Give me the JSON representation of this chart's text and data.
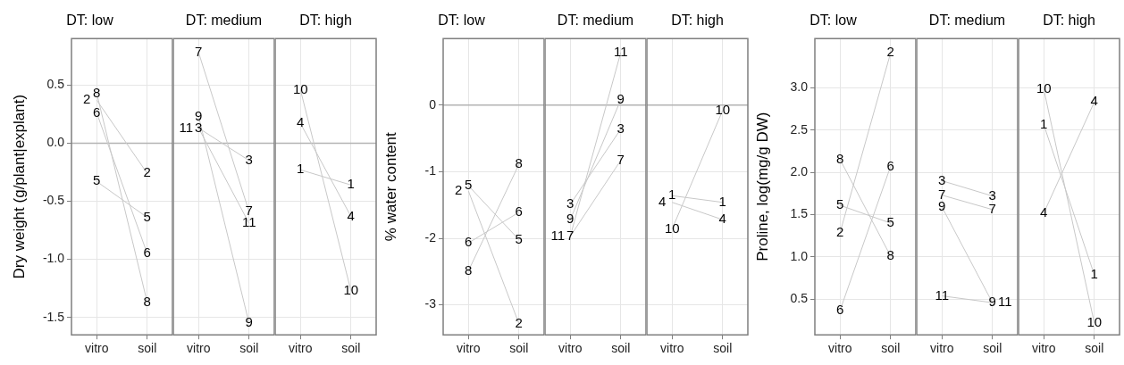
{
  "chart_data": [
    {
      "type": "line",
      "title": "DT: low",
      "ylabel": "Dry weight (g/plant|explant)",
      "categories": [
        "vitro",
        "soil"
      ],
      "ylim": [
        -1.65,
        0.9
      ],
      "yticks": [
        {
          "value": -1.5,
          "label": "-1.5"
        },
        {
          "value": -1,
          "label": "-1.0"
        },
        {
          "value": -0.5,
          "label": "-0.5"
        },
        {
          "value": 0,
          "label": "0.0"
        },
        {
          "value": 0.5,
          "label": "0.5"
        }
      ],
      "grid": true,
      "marker": "none",
      "ref_lines": [
        {
          "axis": "y",
          "value": 0,
          "color": "#b3b3b3"
        }
      ],
      "series": [
        {
          "name": "8",
          "color": "#c8c8c8",
          "values": [
            0.43,
            -1.37
          ]
        },
        {
          "name": "2",
          "color": "#c8c8c8",
          "values": [
            0.37,
            -0.26
          ]
        },
        {
          "name": "6",
          "color": "#c8c8c8",
          "values": [
            0.26,
            -0.95
          ]
        },
        {
          "name": "5",
          "color": "#c8c8c8",
          "values": [
            -0.33,
            -0.64
          ]
        }
      ]
    },
    {
      "type": "line",
      "title": "DT: medium",
      "categories": [
        "vitro",
        "soil"
      ],
      "ylim": [
        -1.65,
        0.9
      ],
      "yticks": [
        -1.5,
        -1,
        -0.5,
        0,
        0.5
      ],
      "grid": true,
      "marker": "none",
      "tick_labels": "x",
      "ref_lines": [
        {
          "axis": "y",
          "value": 0,
          "color": "#b3b3b3"
        }
      ],
      "series": [
        {
          "name": "7",
          "color": "#c8c8c8",
          "values": [
            0.78,
            -0.59
          ]
        },
        {
          "name": "9",
          "color": "#c8c8c8",
          "values": [
            0.23,
            -1.55
          ]
        },
        {
          "name": "3",
          "color": "#c8c8c8",
          "values": [
            0.13,
            -0.15
          ]
        },
        {
          "name": "11",
          "color": "#c8c8c8",
          "values": [
            0.13,
            -0.69
          ]
        }
      ]
    },
    {
      "type": "line",
      "title": "DT: high",
      "categories": [
        "vitro",
        "soil"
      ],
      "ylim": [
        -1.65,
        0.9
      ],
      "yticks": [
        -1.5,
        -1,
        -0.5,
        0,
        0.5
      ],
      "grid": true,
      "marker": "none",
      "tick_labels": "x",
      "ref_lines": [
        {
          "axis": "y",
          "value": 0,
          "color": "#b3b3b3"
        }
      ],
      "series": [
        {
          "name": "10",
          "color": "#c8c8c8",
          "values": [
            0.46,
            -1.27
          ]
        },
        {
          "name": "4",
          "color": "#c8c8c8",
          "values": [
            0.17,
            -0.63
          ]
        },
        {
          "name": "1",
          "color": "#c8c8c8",
          "values": [
            -0.23,
            -0.36
          ]
        }
      ]
    },
    {
      "type": "line",
      "title": "DT: low",
      "ylabel": "% water content",
      "categories": [
        "vitro",
        "soil"
      ],
      "ylim": [
        -3.45,
        1.0
      ],
      "yticks": [
        -3,
        -2,
        -1,
        0
      ],
      "grid": true,
      "marker": "none",
      "ref_lines": [
        {
          "axis": "y",
          "value": 0,
          "color": "#b3b3b3"
        }
      ],
      "series": [
        {
          "name": "5",
          "color": "#c8c8c8",
          "values": [
            -1.21,
            -2.02
          ]
        },
        {
          "name": "2",
          "color": "#c8c8c8",
          "values": [
            -1.29,
            -3.28
          ]
        },
        {
          "name": "6",
          "color": "#c8c8c8",
          "values": [
            -2.07,
            -1.61
          ]
        },
        {
          "name": "8",
          "color": "#c8c8c8",
          "values": [
            -2.49,
            -0.89
          ]
        }
      ]
    },
    {
      "type": "line",
      "title": "DT: medium",
      "categories": [
        "vitro",
        "soil"
      ],
      "ylim": [
        -3.45,
        1.0
      ],
      "yticks": [
        -3,
        -2,
        -1,
        0
      ],
      "grid": true,
      "marker": "none",
      "tick_labels": "x",
      "ref_lines": [
        {
          "axis": "y",
          "value": 0,
          "color": "#b3b3b3"
        }
      ],
      "series": [
        {
          "name": "3",
          "color": "#c8c8c8",
          "values": [
            -1.49,
            -0.36
          ]
        },
        {
          "name": "9",
          "color": "#c8c8c8",
          "values": [
            -1.72,
            0.08
          ]
        },
        {
          "name": "7",
          "color": "#c8c8c8",
          "values": [
            -1.97,
            -0.83
          ]
        },
        {
          "name": "11",
          "color": "#c8c8c8",
          "values": [
            -1.97,
            0.79
          ]
        }
      ]
    },
    {
      "type": "line",
      "title": "DT: high",
      "categories": [
        "vitro",
        "soil"
      ],
      "ylim": [
        -3.45,
        1.0
      ],
      "yticks": [
        -3,
        -2,
        -1,
        0
      ],
      "grid": true,
      "marker": "none",
      "tick_labels": "x",
      "ref_lines": [
        {
          "axis": "y",
          "value": 0,
          "color": "#b3b3b3"
        }
      ],
      "series": [
        {
          "name": "1",
          "color": "#c8c8c8",
          "values": [
            -1.36,
            -1.46
          ]
        },
        {
          "name": "4",
          "color": "#c8c8c8",
          "values": [
            -1.46,
            -1.72
          ]
        },
        {
          "name": "10",
          "color": "#c8c8c8",
          "values": [
            -1.86,
            -0.08
          ]
        }
      ]
    },
    {
      "type": "line",
      "title": "DT: low",
      "ylabel": "Proline, log(mg/g DW)",
      "categories": [
        "vitro",
        "soil"
      ],
      "ylim": [
        0.08,
        3.58
      ],
      "yticks": [
        0.5,
        {
          "value": 1,
          "label": "1.0"
        },
        1.5,
        {
          "value": 2,
          "label": "2.0"
        },
        2.5,
        {
          "value": 3,
          "label": "3.0"
        }
      ],
      "grid": true,
      "marker": "none",
      "series": [
        {
          "name": "8",
          "color": "#c8c8c8",
          "values": [
            2.15,
            1.01
          ]
        },
        {
          "name": "5",
          "color": "#c8c8c8",
          "values": [
            1.61,
            1.4
          ]
        },
        {
          "name": "2",
          "color": "#c8c8c8",
          "values": [
            1.29,
            3.41
          ]
        },
        {
          "name": "6",
          "color": "#c8c8c8",
          "values": [
            0.37,
            2.07
          ]
        }
      ]
    },
    {
      "type": "line",
      "title": "DT: medium",
      "categories": [
        "vitro",
        "soil"
      ],
      "ylim": [
        0.08,
        3.58
      ],
      "yticks": [
        0.5,
        1,
        1.5,
        2,
        2.5,
        3
      ],
      "grid": true,
      "marker": "none",
      "tick_labels": "x",
      "series": [
        {
          "name": "3",
          "color": "#c8c8c8",
          "values": [
            1.9,
            1.72
          ]
        },
        {
          "name": "7",
          "color": "#c8c8c8",
          "values": [
            1.73,
            1.56
          ]
        },
        {
          "name": "9",
          "color": "#c8c8c8",
          "values": [
            1.59,
            0.46
          ]
        },
        {
          "name": "11",
          "color": "#c8c8c8",
          "values": [
            0.54,
            0.46
          ]
        }
      ]
    },
    {
      "type": "line",
      "title": "DT: high",
      "categories": [
        "vitro",
        "soil"
      ],
      "ylim": [
        0.08,
        3.58
      ],
      "yticks": [
        0.5,
        1,
        1.5,
        2,
        2.5,
        3
      ],
      "grid": true,
      "marker": "none",
      "tick_labels": "x",
      "series": [
        {
          "name": "10",
          "color": "#c8c8c8",
          "values": [
            2.98,
            0.22
          ]
        },
        {
          "name": "1",
          "color": "#c8c8c8",
          "values": [
            2.56,
            0.79
          ]
        },
        {
          "name": "4",
          "color": "#c8c8c8",
          "values": [
            1.52,
            2.83
          ]
        }
      ]
    }
  ]
}
